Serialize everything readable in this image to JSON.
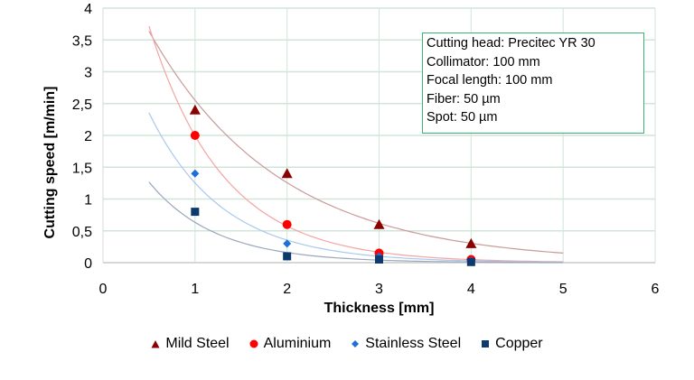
{
  "chart_data": {
    "type": "scatter",
    "xlabel": "Thickness [mm]",
    "ylabel": "Cutting speed [m/min]",
    "xlim": [
      0,
      6
    ],
    "ylim": [
      0,
      4
    ],
    "xticks": [
      "0",
      "1",
      "2",
      "3",
      "4",
      "5",
      "6"
    ],
    "yticks": [
      "0",
      "0,5",
      "1",
      "1,5",
      "2",
      "2,5",
      "3",
      "3,5",
      "4"
    ],
    "grid": true,
    "legend_position": "bottom",
    "trendlines": "exponential",
    "annotation": [
      "Cutting head: Precitec YR 30",
      "Collimator: 100 mm",
      "Focal length: 100 mm",
      "Fiber: 50 µm",
      "Spot: 50 µm"
    ],
    "series": [
      {
        "name": "Mild Steel",
        "marker": "triangle",
        "color": "#8b0000",
        "trend_color": "#c99a9a",
        "x": [
          1,
          2,
          3,
          4
        ],
        "y": [
          2.4,
          1.4,
          0.6,
          0.3
        ]
      },
      {
        "name": "Aluminium",
        "marker": "circle",
        "color": "#ff0000",
        "trend_color": "#f5a3a3",
        "x": [
          1,
          2,
          3,
          4
        ],
        "y": [
          2.0,
          0.6,
          0.15,
          0.05
        ]
      },
      {
        "name": "Stainless Steel",
        "marker": "diamond",
        "color": "#1e6fd9",
        "trend_color": "#a9c8ee",
        "x": [
          1,
          2,
          3,
          4
        ],
        "y": [
          1.4,
          0.3,
          0.1,
          0.03
        ]
      },
      {
        "name": "Copper",
        "marker": "square",
        "color": "#0d3a6e",
        "trend_color": "#9aa8bb",
        "x": [
          1,
          2,
          3,
          4
        ],
        "y": [
          0.8,
          0.1,
          0.05,
          0.01
        ]
      }
    ]
  }
}
